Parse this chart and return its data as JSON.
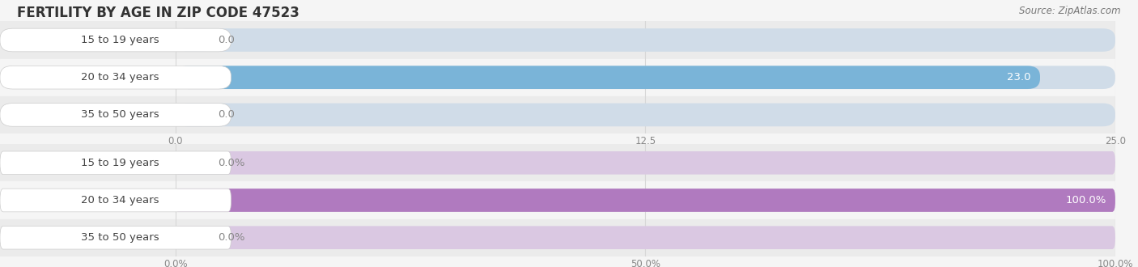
{
  "title": "FERTILITY BY AGE IN ZIP CODE 47523",
  "source": "Source: ZipAtlas.com",
  "top_chart": {
    "categories": [
      "15 to 19 years",
      "20 to 34 years",
      "35 to 50 years"
    ],
    "values": [
      0.0,
      23.0,
      0.0
    ],
    "xlim": [
      0,
      25.0
    ],
    "xticks": [
      0.0,
      12.5,
      25.0
    ],
    "xtick_labels": [
      "0.0",
      "12.5",
      "25.0"
    ],
    "bar_color": "#7ab4d8",
    "bar_bg_color": "#d0dce8",
    "label_bg_color": "#f0f4f8",
    "value_threshold": 1.0
  },
  "bottom_chart": {
    "categories": [
      "15 to 19 years",
      "20 to 34 years",
      "35 to 50 years"
    ],
    "values": [
      0.0,
      100.0,
      0.0
    ],
    "xlim": [
      0,
      100.0
    ],
    "xticks": [
      0.0,
      50.0,
      100.0
    ],
    "xtick_labels": [
      "0.0%",
      "50.0%",
      "100.0%"
    ],
    "bar_color": "#b07abf",
    "bar_bg_color": "#dac8e2",
    "label_bg_color": "#f5f0f8",
    "value_threshold": 5.0
  },
  "title_fontsize": 12,
  "source_fontsize": 8.5,
  "label_fontsize": 9.5,
  "value_fontsize": 9.5,
  "tick_fontsize": 8.5,
  "bg_color": "#f5f5f5",
  "row_bg_even": "#efefef",
  "row_bg_odd": "#f8f8f8",
  "category_label_color": "#444444",
  "value_label_color_inside": "#ffffff",
  "value_label_color_outside": "#888888",
  "grid_color": "#d8d8d8",
  "label_pill_color": "#ffffff",
  "label_pill_edge": "#dddddd"
}
